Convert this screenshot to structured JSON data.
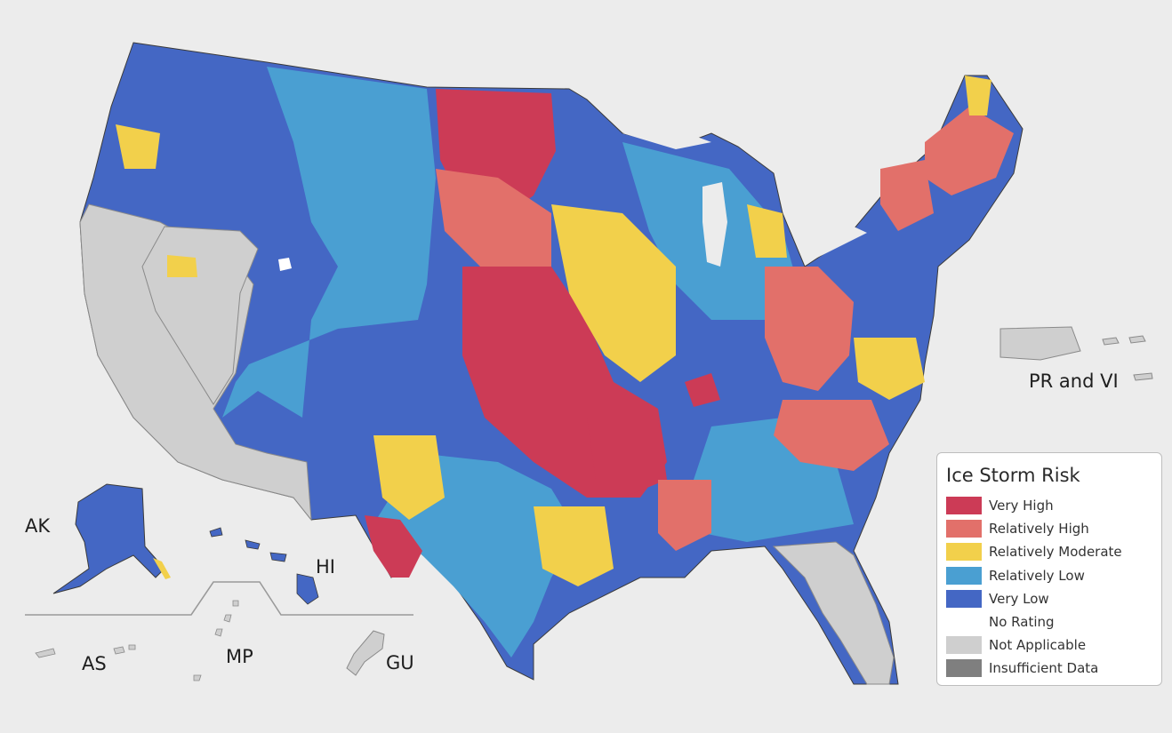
{
  "map": {
    "territory_labels": {
      "ak": "AK",
      "hi": "HI",
      "as": "AS",
      "mp": "MP",
      "gu": "GU",
      "pr_vi": "PR and VI"
    }
  },
  "legend": {
    "title": "Ice Storm Risk",
    "items": [
      {
        "label": "Very High",
        "color": "#cc3b56"
      },
      {
        "label": "Relatively High",
        "color": "#e2706a"
      },
      {
        "label": "Relatively Moderate",
        "color": "#f2d04b"
      },
      {
        "label": "Relatively Low",
        "color": "#4a9fd2"
      },
      {
        "label": "Very Low",
        "color": "#4467c4"
      },
      {
        "label": "No Rating",
        "color": "#ffffff"
      },
      {
        "label": "Not Applicable",
        "color": "#cfcfcf"
      },
      {
        "label": "Insufficient Data",
        "color": "#7f7f7f"
      }
    ]
  }
}
